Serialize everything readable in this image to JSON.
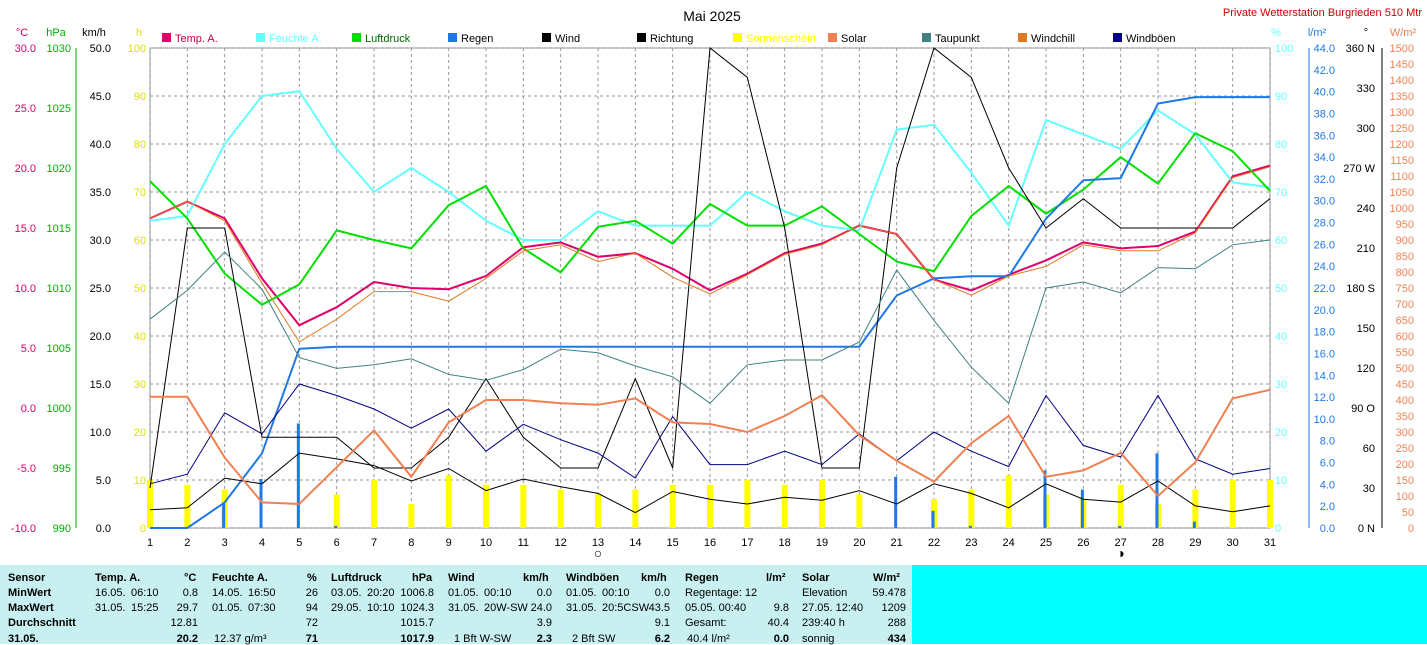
{
  "title": "Mai 2025",
  "station": "Private Wetterstation Burgrieden 510 Mtr",
  "legend": [
    {
      "label": "Temp. A.",
      "color": "#e0006a"
    },
    {
      "label": "Feuchte A.",
      "color": "#66ffff"
    },
    {
      "label": "Luftdruck",
      "color": "#00e000"
    },
    {
      "label": "Regen",
      "color": "#1e78e6"
    },
    {
      "label": "Wind",
      "color": "#000000"
    },
    {
      "label": "Richtung",
      "color": "#000000"
    },
    {
      "label": "Sonnenschein",
      "color": "#ffff00"
    },
    {
      "label": "Solar",
      "color": "#f08050"
    },
    {
      "label": "Taupunkt",
      "color": "#408080"
    },
    {
      "label": "Windchill",
      "color": "#e07820"
    },
    {
      "label": "Windböen",
      "color": "#000080"
    }
  ],
  "chart_data": {
    "type": "line",
    "x": [
      1,
      2,
      3,
      4,
      5,
      6,
      7,
      8,
      9,
      10,
      11,
      12,
      13,
      14,
      15,
      16,
      17,
      18,
      19,
      20,
      21,
      22,
      23,
      24,
      25,
      26,
      27,
      28,
      29,
      30,
      31
    ],
    "axes": {
      "temp": {
        "unit": "°C",
        "min": -10,
        "max": 30,
        "ticks": [
          "30.0",
          "25.0",
          "20.0",
          "15.0",
          "10.0",
          "5.0",
          "0.0",
          "-5.0",
          "-10.0"
        ],
        "color": "#e0006a"
      },
      "pressure": {
        "unit": "hPa",
        "min": 990,
        "max": 1030,
        "ticks": [
          "1030",
          "1025",
          "1020",
          "1015",
          "1010",
          "1005",
          "1000",
          "995",
          "990"
        ],
        "color": "#00b000"
      },
      "wind": {
        "unit": "km/h",
        "min": 0,
        "max": 50,
        "ticks": [
          "50.0",
          "45.0",
          "40.0",
          "35.0",
          "30.0",
          "25.0",
          "20.0",
          "15.0",
          "10.0",
          "5.0",
          "0.0"
        ],
        "color": "#000000"
      },
      "sun": {
        "unit": "h",
        "min": 0,
        "max": 100,
        "ticks": [
          "100",
          "90",
          "80",
          "70",
          "60",
          "50",
          "40",
          "30",
          "20",
          "10",
          "0"
        ],
        "color": "#e0e000"
      },
      "humidity": {
        "unit": "%",
        "min": 0,
        "max": 100,
        "ticks": [
          "100",
          "90",
          "80",
          "70",
          "60",
          "50",
          "40",
          "30",
          "20",
          "10",
          "0"
        ],
        "color": "#66ffff"
      },
      "rain": {
        "unit": "l/m²",
        "min": 0,
        "max": 45,
        "ticks": [
          "44.0",
          "42.0",
          "40.0",
          "38.0",
          "36.0",
          "34.0",
          "32.0",
          "30.0",
          "28.0",
          "26.0",
          "24.0",
          "22.0",
          "20.0",
          "18.0",
          "16.0",
          "14.0",
          "12.0",
          "10.0",
          "8.0",
          "6.0",
          "4.0",
          "2.0",
          "0.0"
        ],
        "color": "#1e78e6"
      },
      "direction": {
        "unit": "°",
        "min": 0,
        "max": 360,
        "ticks": [
          "360 N",
          "330",
          "300",
          "270 W",
          "240",
          "210",
          "180 S",
          "150",
          "120",
          "90 O",
          "60",
          "30",
          "0 N"
        ],
        "color": "#000000"
      },
      "solar": {
        "unit": "W/m²",
        "min": 0,
        "max": 1500,
        "ticks": [
          "1500",
          "1450",
          "1400",
          "1350",
          "1300",
          "1250",
          "1200",
          "1150",
          "1100",
          "1050",
          "1000",
          "950",
          "900",
          "850",
          "800",
          "750",
          "700",
          "650",
          "600",
          "550",
          "500",
          "450",
          "400",
          "350",
          "300",
          "250",
          "200",
          "150",
          "100",
          "50",
          "0"
        ],
        "color": "#f08050"
      }
    },
    "series": [
      {
        "name": "Temp. A.",
        "axis": "temp",
        "color": "#e0006a",
        "width": 2,
        "values": [
          15.8,
          17.2,
          15.8,
          10.8,
          6.9,
          8.4,
          10.5,
          10.0,
          9.9,
          11.0,
          13.4,
          13.8,
          12.6,
          12.9,
          11.6,
          9.8,
          11.2,
          12.9,
          13.7,
          15.2,
          14.5,
          10.7,
          9.8,
          11.1,
          12.3,
          13.8,
          13.3,
          13.5,
          14.7,
          19.3,
          20.2
        ]
      },
      {
        "name": "Feuchte A.",
        "axis": "humidity",
        "color": "#66ffff",
        "width": 2,
        "values": [
          64,
          65,
          80,
          90,
          91,
          79,
          70,
          75,
          70,
          64,
          60,
          60,
          66,
          63,
          63,
          63,
          70,
          66,
          63,
          62,
          83,
          84,
          74,
          63,
          85,
          82,
          79,
          87,
          82,
          72,
          71
        ]
      },
      {
        "name": "Luftdruck",
        "axis": "pressure",
        "color": "#00e000",
        "width": 2,
        "values": [
          1018.9,
          1015.8,
          1011.2,
          1008.6,
          1010.3,
          1014.8,
          1014.0,
          1013.3,
          1016.9,
          1018.5,
          1013.3,
          1011.3,
          1015.1,
          1015.6,
          1013.7,
          1017.0,
          1015.2,
          1015.2,
          1016.8,
          1014.5,
          1012.2,
          1011.4,
          1016.0,
          1018.5,
          1016.2,
          1018.2,
          1020.9,
          1018.7,
          1022.9,
          1021.4,
          1018.1
        ]
      },
      {
        "name": "Regen",
        "axis": "rain",
        "color": "#1e78e6",
        "width": 2,
        "values": [
          0.0,
          0.0,
          2.4,
          7.0,
          16.8,
          17.0,
          17.0,
          17.0,
          17.0,
          17.0,
          17.0,
          17.0,
          17.0,
          17.0,
          17.0,
          17.0,
          17.0,
          17.0,
          17.0,
          17.0,
          21.8,
          23.4,
          23.6,
          23.6,
          29.0,
          32.6,
          32.8,
          39.8,
          40.4,
          40.4,
          40.4
        ]
      },
      {
        "name": "Wind",
        "axis": "wind",
        "color": "#000000",
        "width": 1,
        "values": [
          1.9,
          2.1,
          5.2,
          4.6,
          7.8,
          7.2,
          6.5,
          4.9,
          6.2,
          3.9,
          5.1,
          4.3,
          3.6,
          1.6,
          3.8,
          3.0,
          2.5,
          3.2,
          2.9,
          3.9,
          2.5,
          4.6,
          3.6,
          2.1,
          4.6,
          3.0,
          2.7,
          4.9,
          2.3,
          1.7,
          2.3
        ]
      },
      {
        "name": "Richtung",
        "axis": "direction",
        "color": "#000000",
        "width": 1,
        "values": [
          30,
          225,
          225,
          68,
          68,
          68,
          45,
          45,
          68,
          112,
          68,
          45,
          45,
          112,
          45,
          360,
          338,
          225,
          45,
          45,
          270,
          360,
          338,
          270,
          225,
          247,
          225,
          225,
          225,
          225,
          247
        ]
      },
      {
        "name": "Windböen",
        "axis": "wind",
        "color": "#000080",
        "width": 1,
        "values": [
          4.6,
          5.6,
          12.0,
          9.8,
          15.0,
          13.8,
          12.4,
          10.4,
          12.4,
          8.0,
          10.8,
          9.2,
          7.8,
          5.2,
          11.6,
          6.6,
          6.6,
          8.0,
          6.6,
          9.8,
          7.0,
          10.0,
          8.0,
          6.4,
          13.8,
          8.6,
          7.4,
          13.8,
          7.2,
          5.6,
          6.2
        ]
      },
      {
        "name": "Solar",
        "axis": "solar",
        "color": "#f08050",
        "width": 2,
        "values": [
          410,
          410,
          220,
          80,
          75,
          190,
          305,
          160,
          330,
          400,
          400,
          390,
          385,
          405,
          330,
          325,
          300,
          350,
          415,
          290,
          210,
          145,
          265,
          350,
          160,
          180,
          235,
          100,
          205,
          405,
          432
        ]
      },
      {
        "name": "Taupunkt",
        "axis": "temp",
        "color": "#408080",
        "width": 1,
        "values": [
          7.4,
          9.8,
          13.0,
          9.9,
          4.2,
          3.3,
          3.6,
          4.1,
          2.8,
          2.3,
          3.2,
          4.9,
          4.6,
          3.5,
          2.6,
          0.4,
          3.6,
          4.0,
          4.0,
          5.5,
          11.5,
          7.3,
          3.4,
          0.4,
          10.0,
          10.5,
          9.6,
          11.7,
          11.6,
          13.6,
          14.0
        ]
      },
      {
        "name": "Windchill",
        "axis": "temp",
        "color": "#e07820",
        "width": 1,
        "values": [
          15.8,
          17.2,
          15.6,
          10.4,
          5.5,
          7.4,
          9.7,
          9.7,
          8.9,
          10.8,
          13.1,
          13.6,
          12.2,
          12.9,
          10.9,
          9.5,
          11.1,
          12.8,
          13.6,
          15.2,
          14.5,
          10.7,
          9.4,
          11.0,
          11.8,
          13.6,
          13.1,
          13.1,
          14.6,
          19.2,
          20.1
        ]
      }
    ],
    "bars": [
      {
        "name": "Sonnenschein",
        "axis": "sun",
        "color": "#ffff00",
        "values": [
          10,
          9,
          8,
          0,
          0,
          7,
          10,
          5,
          11,
          9,
          9,
          8,
          7,
          8,
          9,
          9,
          10,
          9,
          10,
          7,
          0,
          6,
          8,
          11,
          7,
          6,
          9,
          5,
          8,
          10,
          10
        ]
      },
      {
        "name": "Regen",
        "axis": "rain",
        "color": "#1e78e6",
        "values": [
          0.0,
          0.0,
          2.4,
          4.6,
          9.8,
          0.2,
          0.0,
          0.0,
          0.0,
          0.0,
          0.0,
          0.0,
          0.0,
          0.0,
          0.0,
          0.0,
          0.0,
          0.0,
          0.0,
          0.0,
          4.8,
          1.6,
          0.2,
          0.0,
          5.4,
          3.6,
          0.2,
          7.0,
          0.6,
          0.0,
          0.0
        ]
      }
    ],
    "moons": [
      {
        "day": 13,
        "symbol": "○"
      },
      {
        "day": 27,
        "symbol": "◑"
      }
    ],
    "grid": true
  },
  "table": {
    "rows_labels": [
      "Sensor",
      "MinWert",
      "MaxWert",
      "Durchschnitt",
      "31.05."
    ],
    "temp": {
      "header": "Temp. A.",
      "unit": "°C",
      "min_date": "16.05.",
      "min_time": "06:10",
      "min": "0.8",
      "max_date": "31.05.",
      "max_time": "15:25",
      "max": "29.7",
      "avg": "12.81",
      "last": "20.2"
    },
    "hum": {
      "header": "Feuchte A.",
      "unit": "%",
      "min_date": "14.05.",
      "min_time": "16:50",
      "min": "26",
      "max_date": "01.05.",
      "max_time": "07:30",
      "max": "94",
      "avg": "72",
      "last_abs": "12.37 g/m³",
      "last": "71"
    },
    "press": {
      "header": "Luftdruck",
      "unit": "hPa",
      "min_date": "03.05.",
      "min_time": "20:20",
      "min": "1006.8",
      "max_date": "29.05.",
      "max_time": "10:10",
      "max": "1024.3",
      "avg": "1015.7",
      "last": "1017.9"
    },
    "wind": {
      "header": "Wind",
      "unit": "km/h",
      "min_date": "01.05.",
      "min_time": "00:10",
      "min": "0.0",
      "max_date": "31.05.",
      "max_time": "20W-SW",
      "max": "24.0",
      "avg": "3.9",
      "last_txt": "1 Bft W-SW",
      "last": "2.3"
    },
    "gust": {
      "header": "Windböen",
      "unit": "km/h",
      "min_date": "01.05.",
      "min_time": "00:10",
      "min": "0.0",
      "max_date": "31.05.",
      "max_time": "20:5CSW",
      "max": "43.5",
      "avg": "9.1",
      "last_txt": "2 Bft SW",
      "last": "6.2"
    },
    "rain": {
      "header": "Regen",
      "unit": "l/m²",
      "r1_label": "Regentage: 12",
      "r2_label": "05.05. 00:40",
      "r2": "9.8",
      "r3_label": "Gesamt:",
      "r3": "40.4",
      "r4_label": "40.4 l/m²",
      "r4": "0.0"
    },
    "solar": {
      "header": "Solar",
      "unit": "W/m²",
      "r1_label": "Elevation",
      "r1": "59.478",
      "r2_label": "27.05. 12:40",
      "r2": "1209",
      "r3_label": "239:40 h",
      "r3": "288",
      "r4_label": "sonnig",
      "r4": "434"
    }
  }
}
